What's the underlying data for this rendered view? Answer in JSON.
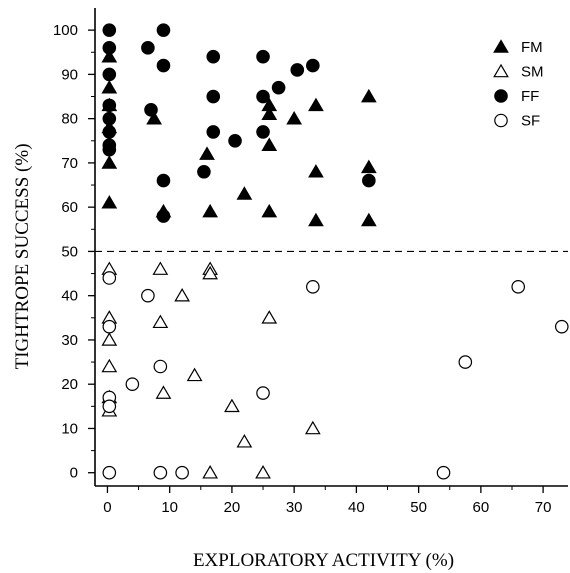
{
  "chart_data": {
    "type": "scatter",
    "title": "",
    "xlabel": "EXPLORATORY ACTIVITY (%)",
    "ylabel": "TIGHTROPE SUCCESS (%)",
    "xlim": [
      -2,
      74
    ],
    "ylim": [
      -3,
      105
    ],
    "xticks": [
      0,
      10,
      20,
      30,
      40,
      50,
      60,
      70
    ],
    "yticks": [
      0,
      10,
      20,
      30,
      40,
      50,
      60,
      70,
      80,
      90,
      100
    ],
    "grid": false,
    "legend_position": "top-right",
    "reference_line": {
      "y": 50,
      "style": "dashed"
    },
    "series": [
      {
        "name": "FM",
        "marker": "filled-triangle",
        "points": [
          {
            "x": 0.3,
            "y": 94
          },
          {
            "x": 0.3,
            "y": 87
          },
          {
            "x": 0.3,
            "y": 83
          },
          {
            "x": 0.3,
            "y": 78
          },
          {
            "x": 0.3,
            "y": 70
          },
          {
            "x": 0.3,
            "y": 61
          },
          {
            "x": 7.5,
            "y": 80
          },
          {
            "x": 9,
            "y": 59
          },
          {
            "x": 16,
            "y": 72
          },
          {
            "x": 16.5,
            "y": 59
          },
          {
            "x": 22,
            "y": 63
          },
          {
            "x": 26,
            "y": 83
          },
          {
            "x": 26,
            "y": 81
          },
          {
            "x": 26,
            "y": 74
          },
          {
            "x": 26,
            "y": 59
          },
          {
            "x": 30,
            "y": 80
          },
          {
            "x": 33.5,
            "y": 83
          },
          {
            "x": 33.5,
            "y": 68
          },
          {
            "x": 33.5,
            "y": 57
          },
          {
            "x": 42,
            "y": 85
          },
          {
            "x": 42,
            "y": 69
          },
          {
            "x": 42,
            "y": 57
          }
        ]
      },
      {
        "name": "SM",
        "marker": "open-triangle",
        "points": [
          {
            "x": 0.3,
            "y": 46
          },
          {
            "x": 0.3,
            "y": 35
          },
          {
            "x": 0.3,
            "y": 30
          },
          {
            "x": 0.3,
            "y": 24
          },
          {
            "x": 0.3,
            "y": 17
          },
          {
            "x": 0.3,
            "y": 14
          },
          {
            "x": 8.5,
            "y": 46
          },
          {
            "x": 8.5,
            "y": 34
          },
          {
            "x": 9,
            "y": 18
          },
          {
            "x": 12,
            "y": 40
          },
          {
            "x": 14,
            "y": 22
          },
          {
            "x": 16.5,
            "y": 46
          },
          {
            "x": 16.5,
            "y": 45
          },
          {
            "x": 16.5,
            "y": 0
          },
          {
            "x": 20,
            "y": 15
          },
          {
            "x": 22,
            "y": 7
          },
          {
            "x": 25,
            "y": 0
          },
          {
            "x": 26,
            "y": 35
          },
          {
            "x": 33,
            "y": 10
          }
        ]
      },
      {
        "name": "FF",
        "marker": "filled-circle",
        "points": [
          {
            "x": 0.3,
            "y": 100
          },
          {
            "x": 0.3,
            "y": 96
          },
          {
            "x": 0.3,
            "y": 90
          },
          {
            "x": 0.3,
            "y": 83
          },
          {
            "x": 0.3,
            "y": 80
          },
          {
            "x": 0.3,
            "y": 77
          },
          {
            "x": 0.3,
            "y": 74
          },
          {
            "x": 0.3,
            "y": 73
          },
          {
            "x": 6.5,
            "y": 96
          },
          {
            "x": 7,
            "y": 82
          },
          {
            "x": 9,
            "y": 100
          },
          {
            "x": 9,
            "y": 92
          },
          {
            "x": 9,
            "y": 66
          },
          {
            "x": 9,
            "y": 58
          },
          {
            "x": 15.5,
            "y": 68
          },
          {
            "x": 17,
            "y": 94
          },
          {
            "x": 17,
            "y": 85
          },
          {
            "x": 17,
            "y": 77
          },
          {
            "x": 20.5,
            "y": 75
          },
          {
            "x": 25,
            "y": 94
          },
          {
            "x": 25,
            "y": 85
          },
          {
            "x": 25,
            "y": 77
          },
          {
            "x": 27.5,
            "y": 87
          },
          {
            "x": 30.5,
            "y": 91
          },
          {
            "x": 33,
            "y": 92
          },
          {
            "x": 42,
            "y": 66
          }
        ]
      },
      {
        "name": "SF",
        "marker": "open-circle",
        "points": [
          {
            "x": 0.3,
            "y": 44
          },
          {
            "x": 0.3,
            "y": 33
          },
          {
            "x": 0.3,
            "y": 17
          },
          {
            "x": 0.3,
            "y": 15
          },
          {
            "x": 0.3,
            "y": 0
          },
          {
            "x": 4,
            "y": 20
          },
          {
            "x": 6.5,
            "y": 40
          },
          {
            "x": 8.5,
            "y": 24
          },
          {
            "x": 8.5,
            "y": 0
          },
          {
            "x": 12,
            "y": 0
          },
          {
            "x": 25,
            "y": 18
          },
          {
            "x": 33,
            "y": 42
          },
          {
            "x": 54,
            "y": 0
          },
          {
            "x": 57.5,
            "y": 25
          },
          {
            "x": 66,
            "y": 42
          },
          {
            "x": 73,
            "y": 33
          }
        ]
      }
    ]
  }
}
